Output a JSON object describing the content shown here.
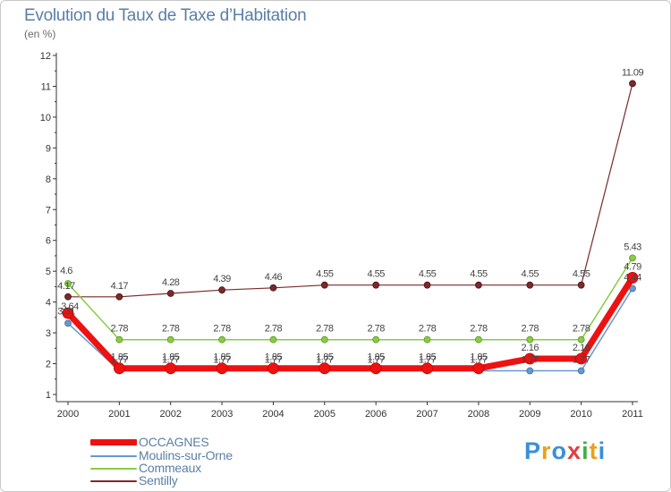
{
  "chart_data": {
    "type": "line",
    "title": "Evolution du Taux de Taxe d’Habitation",
    "subtitle": "(en %)",
    "xlabel": "",
    "ylabel": "",
    "categories": [
      "2000",
      "2001",
      "2002",
      "2003",
      "2004",
      "2005",
      "2006",
      "2007",
      "2008",
      "2009",
      "2010",
      "2011"
    ],
    "ylim": [
      1,
      12
    ],
    "yticks": [
      "1",
      "2",
      "3",
      "4",
      "5",
      "6",
      "7",
      "8",
      "9",
      "10",
      "11",
      "12"
    ],
    "grid": false,
    "legend": "bottom-left",
    "series": [
      {
        "name": "OCCAGNES",
        "color": "#ee1111",
        "values": [
          3.64,
          1.85,
          1.85,
          1.85,
          1.85,
          1.85,
          1.85,
          1.85,
          1.85,
          2.16,
          2.16,
          4.79
        ],
        "labels": [
          "3.64",
          "1.85",
          "1.85",
          "1.85",
          "1.85",
          "1.85",
          "1.85",
          "1.85",
          "1.85",
          "2.16",
          "2.16",
          "4.79"
        ]
      },
      {
        "name": "Moulins-sur-Orne",
        "color": "#6699cc",
        "values": [
          3.31,
          1.77,
          1.77,
          1.77,
          1.77,
          1.77,
          1.77,
          1.77,
          1.77,
          1.77,
          1.77,
          4.44
        ],
        "labels": [
          "3.31",
          "1.77",
          "1.77",
          "1.77",
          "1.77",
          "1.77",
          "1.77",
          "1.77",
          "1.77",
          "1.77",
          "1.77",
          "4.44"
        ]
      },
      {
        "name": "Commeaux",
        "color": "#88cc44",
        "values": [
          4.6,
          2.78,
          2.78,
          2.78,
          2.78,
          2.78,
          2.78,
          2.78,
          2.78,
          2.78,
          2.78,
          5.43
        ],
        "labels": [
          "4.6",
          "2.78",
          "2.78",
          "2.78",
          "2.78",
          "2.78",
          "2.78",
          "2.78",
          "2.78",
          "2.78",
          "2.78",
          "5.43"
        ]
      },
      {
        "name": "Sentilly",
        "color": "#7a2a2a",
        "values": [
          4.17,
          4.17,
          4.28,
          4.39,
          4.46,
          4.55,
          4.55,
          4.55,
          4.55,
          4.55,
          4.55,
          11.09
        ],
        "labels": [
          "4.17",
          "4.17",
          "4.28",
          "4.39",
          "4.46",
          "4.55",
          "4.55",
          "4.55",
          "4.55",
          "4.55",
          "4.55",
          "11.09"
        ]
      }
    ]
  },
  "legend": {
    "items": [
      {
        "label": "OCCAGNES",
        "color": "#ee1111"
      },
      {
        "label": "Moulins-sur-Orne",
        "color": "#6699cc"
      },
      {
        "label": "Commeaux",
        "color": "#88cc44"
      },
      {
        "label": "Sentilly",
        "color": "#7a2a2a"
      }
    ]
  },
  "logo": {
    "letters": [
      "P",
      "r",
      "o",
      "x",
      "i",
      "t",
      "i"
    ],
    "colors": [
      "#3a8fd8",
      "#e8a020",
      "#3a8fd8",
      "#e04040",
      "#40b040",
      "#e8a020",
      "#3a8fd8"
    ]
  }
}
